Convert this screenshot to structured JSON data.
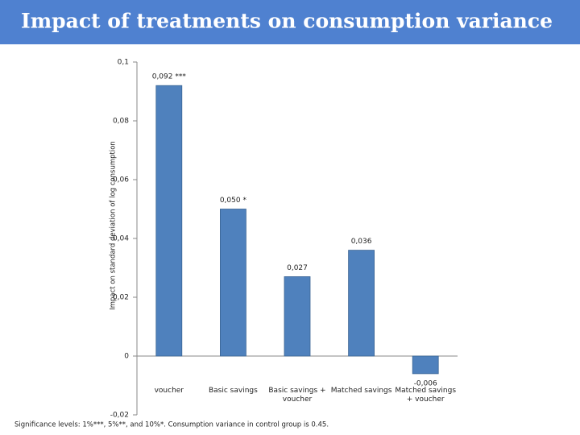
{
  "chart_data": {
    "type": "bar",
    "title": "Impact of treatments on consumption variance",
    "y_label": "Impact on standard deviation of log consumption",
    "categories": [
      "voucher",
      "Basic savings",
      "Basic savings + voucher",
      "Matched savings",
      "Matched savings + voucher"
    ],
    "values": [
      0.092,
      0.05,
      0.027,
      0.036,
      -0.006
    ],
    "value_labels": [
      "0,092 ***",
      "0,050 *",
      "0,027",
      "0,036",
      "-0,006"
    ],
    "color": "#4f81bd",
    "ylim": [
      -0.02,
      0.1
    ],
    "yticks": [
      {
        "value": -0.02,
        "label": "-0,02"
      },
      0,
      {
        "value": 0.02,
        "label": "0,02"
      },
      {
        "value": 0.04,
        "label": "0,04"
      },
      {
        "value": 0.06,
        "label": "0,06"
      },
      {
        "value": 0.08,
        "label": "0,08"
      },
      {
        "value": 0.1,
        "label": "0,1"
      }
    ],
    "footnote": "Significance levels: 1%***, 5%**, and 10%*. Consumption variance in control group is 0.45."
  }
}
